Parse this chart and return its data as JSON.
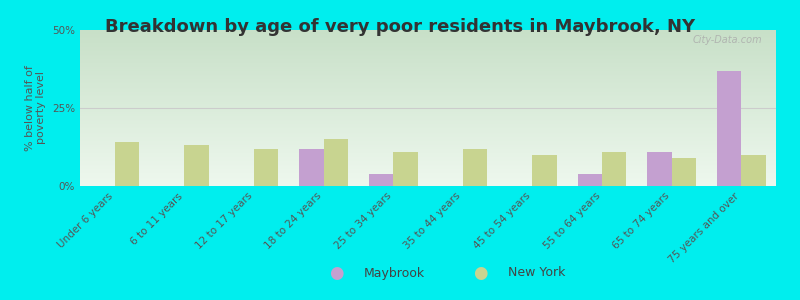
{
  "title": "Breakdown by age of very poor residents in Maybrook, NY",
  "ylabel": "% below half of\npoverty level",
  "categories": [
    "Under 6 years",
    "6 to 11 years",
    "12 to 17 years",
    "18 to 24 years",
    "25 to 34 years",
    "35 to 44 years",
    "45 to 54 years",
    "55 to 64 years",
    "65 to 74 years",
    "75 years and over"
  ],
  "maybrook_values": [
    0,
    0,
    0,
    12,
    4,
    0,
    0,
    4,
    11,
    37
  ],
  "newyork_values": [
    14,
    13,
    12,
    15,
    11,
    12,
    10,
    11,
    9,
    10
  ],
  "maybrook_color": "#c4a0d0",
  "newyork_color": "#c8d490",
  "background_color": "#00eeee",
  "plot_bg_top": "#c8e0c8",
  "plot_bg_bottom": "#eef8ee",
  "grid_color": "#cccccc",
  "ylim": [
    0,
    50
  ],
  "yticks": [
    0,
    25,
    50
  ],
  "ytick_labels": [
    "0%",
    "25%",
    "50%"
  ],
  "bar_width": 0.35,
  "title_fontsize": 13,
  "axis_fontsize": 8,
  "tick_fontsize": 7.5,
  "legend_labels": [
    "Maybrook",
    "New York"
  ],
  "watermark": "City-Data.com"
}
